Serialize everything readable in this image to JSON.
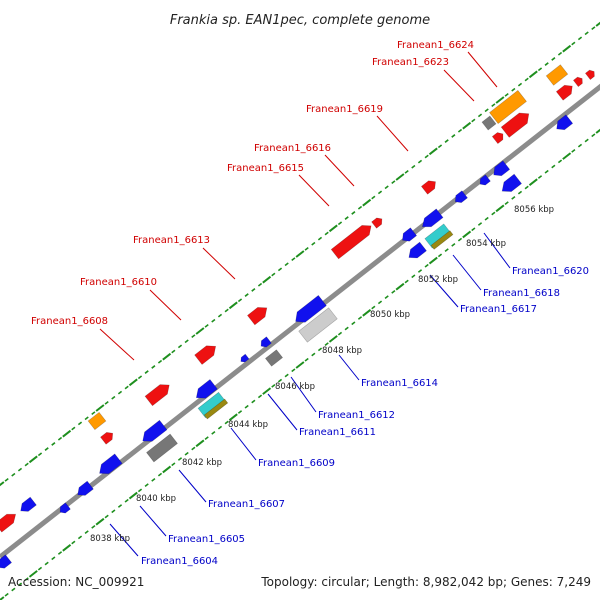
{
  "title": "Frankia sp. EAN1pec, complete genome",
  "footer": {
    "accession": "Accession: NC_009921",
    "topology": "Topology: circular; Length: 8,982,042 bp; Genes: 7,249"
  },
  "colors": {
    "backbone": "#8c8c8c",
    "tick": "#1e8f1e",
    "forward_label": "#d00000",
    "reverse_label": "#0000c8",
    "red_gene": "#ee1111",
    "blue_gene": "#1111ee",
    "orange_gene": "#ff9900",
    "gray_gene": "#777777",
    "lightgray_gene": "#cccccc",
    "cyan_gene": "#33cccc",
    "olive_gene": "#998811"
  },
  "scale_labels": [
    "8038 kbp",
    "8040 kbp",
    "8042 kbp",
    "8044 kbp",
    "8046 kbp",
    "8048 kbp",
    "8050 kbp",
    "8052 kbp",
    "8054 kbp",
    "8056 kbp"
  ],
  "forward_gene_labels": [
    "Franean1_6608",
    "Franean1_6610",
    "Franean1_6613",
    "Franean1_6615",
    "Franean1_6616",
    "Franean1_6619",
    "Franean1_6623",
    "Franean1_6624"
  ],
  "reverse_gene_labels": [
    "Franean1_6604",
    "Franean1_6605",
    "Franean1_6607",
    "Franean1_6609",
    "Franean1_6611",
    "Franean1_6612",
    "Franean1_6614",
    "Franean1_6617",
    "Franean1_6618",
    "Franean1_6620"
  ]
}
